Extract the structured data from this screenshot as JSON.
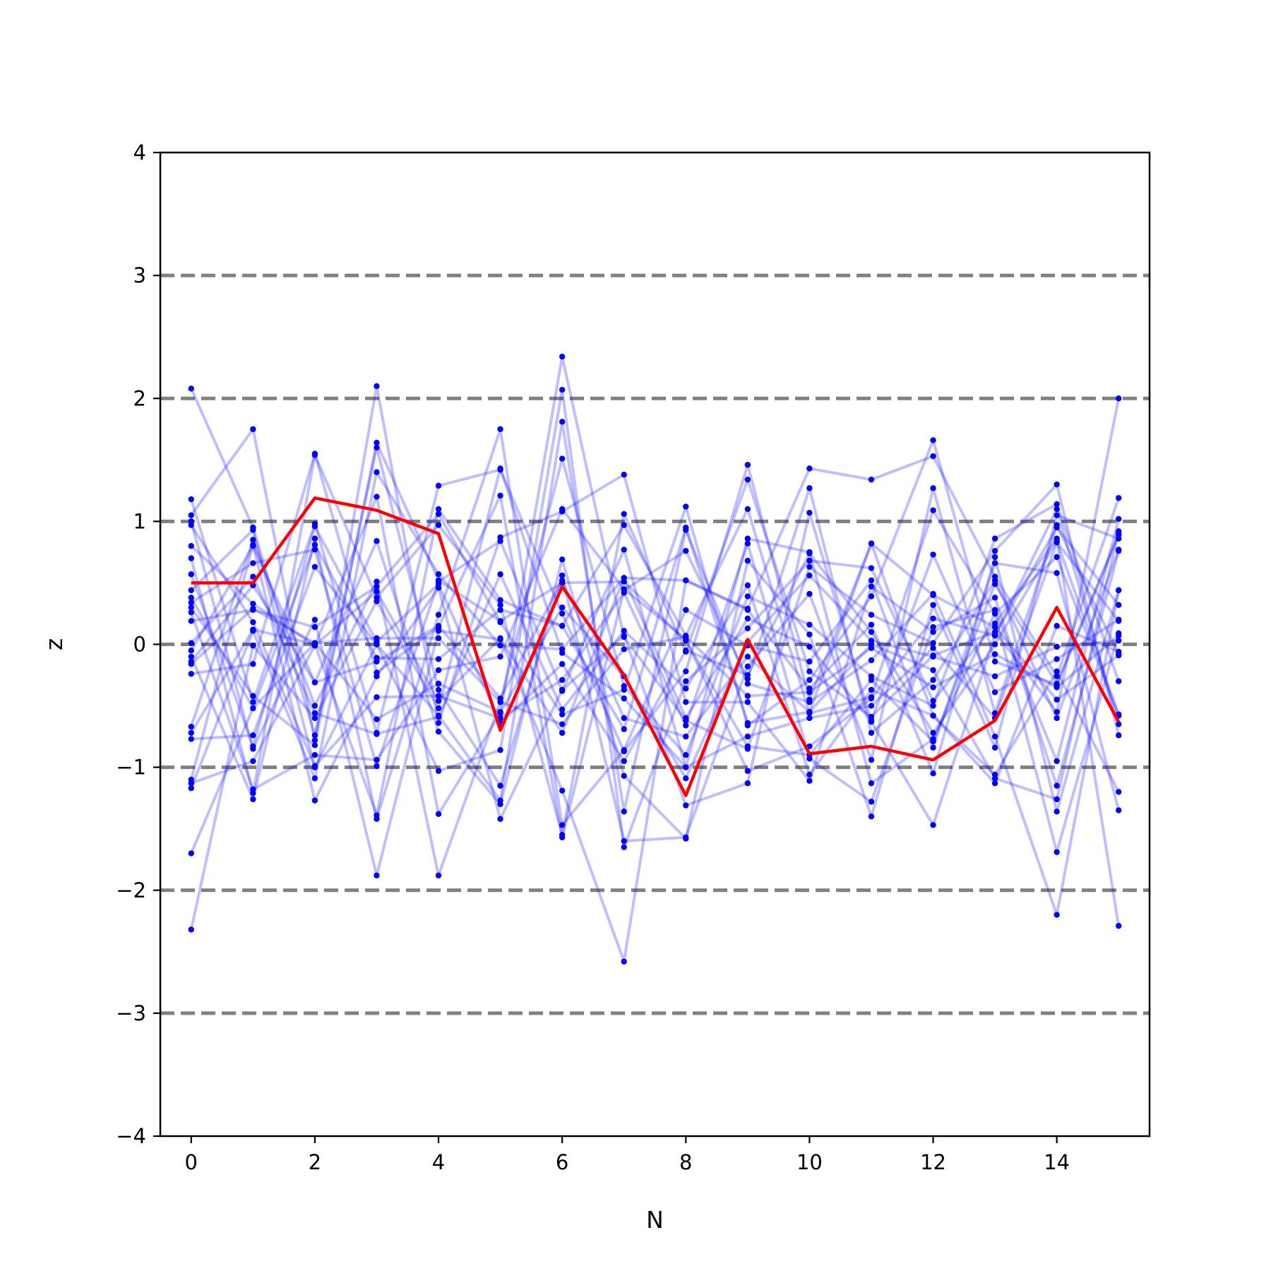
{
  "chart_data": {
    "type": "line",
    "title": "",
    "xlabel": "N",
    "ylabel": "z",
    "xlim": [
      -0.5,
      15.5
    ],
    "ylim": [
      -4,
      4
    ],
    "x_ticks": [
      0,
      2,
      4,
      6,
      8,
      10,
      12,
      14
    ],
    "x_tick_labels": [
      "0",
      "2",
      "4",
      "6",
      "8",
      "10",
      "12",
      "14"
    ],
    "y_ticks": [
      -4,
      -3,
      -2,
      -1,
      0,
      1,
      2,
      3,
      4
    ],
    "y_tick_labels": [
      "−4",
      "−3",
      "−2",
      "−1",
      "0",
      "1",
      "2",
      "3",
      "4"
    ],
    "reference_lines": [
      -3,
      -2,
      -1,
      0,
      1,
      2,
      3
    ],
    "reference_line_color": "#808080",
    "background_series_color": "#0000ff",
    "highlight_color": "#ff0000",
    "grid": false,
    "legend": "none",
    "x": [
      0,
      1,
      2,
      3,
      4,
      5,
      6,
      7,
      8,
      9,
      10,
      11,
      12,
      13,
      14,
      15
    ],
    "highlight_series": {
      "values": [
        0.5,
        0.5,
        1.19,
        1.09,
        0.9,
        -0.7,
        0.47,
        -0.25,
        -1.23,
        0.04,
        -0.89,
        -0.83,
        -0.94,
        -0.62,
        0.3,
        -0.63
      ]
    },
    "background_series": [
      [
        2.08,
        0.95,
        -0.74,
        1.6,
        -0.37,
        -1.15,
        0.56,
        -1.6,
        -1.57,
        -0.18,
        0.41,
        -0.94,
        1.27,
        -0.56,
        0.97,
        -0.08
      ],
      [
        1.18,
        -0.47,
        0.98,
        -0.72,
        1.29,
        1.42,
        0.25,
        -0.87,
        -0.22,
        1.46,
        -0.45,
        0.82,
        -0.58,
        -1.06,
        -0.22,
        -1.2
      ],
      [
        1.05,
        1.75,
        -0.78,
        2.1,
        -0.64,
        0.87,
        1.08,
        1.38,
        -0.47,
        -0.47,
        -1.11,
        0.47,
        0.1,
        0.38,
        -1.15,
        0.76
      ],
      [
        1.0,
        -0.85,
        0.2,
        -1.88,
        0.11,
        0.04,
        -0.72,
        0.54,
        0.52,
        0.29,
        1.43,
        1.34,
        1.53,
        0.55,
        -0.26,
        1.19
      ],
      [
        0.8,
        0.33,
        -0.01,
        1.2,
        -1.38,
        -0.56,
        2.34,
        0.06,
        -0.62,
        -0.85,
        0.63,
        0.24,
        0.01,
        0.76,
        1.3,
        -0.74
      ],
      [
        0.7,
        -1.21,
        1.54,
        0.38,
        0.97,
        0.32,
        -1.55,
        1.06,
        -0.06,
        1.34,
        -0.22,
        -0.59,
        -0.09,
        0.1,
        -0.55,
        2.0
      ],
      [
        0.44,
        0.93,
        -1.0,
        0.0,
        -0.58,
        -1.27,
        1.81,
        -1.36,
        0.93,
        -0.32,
        -0.47,
        -0.13,
        0.41,
        -0.75,
        -2.2,
        0.44
      ],
      [
        0.34,
        0.66,
        0.77,
        -0.99,
        0.51,
        0.84,
        -0.38,
        0.77,
        -1.0,
        0.86,
        0.75,
        -1.13,
        -0.77,
        0.25,
        0.71,
        -0.58
      ],
      [
        0.26,
        -1.18,
        -0.9,
        -0.94,
        -0.21,
        -0.1,
        1.1,
        0.45,
        0.04,
        -1.03,
        -0.83,
        -0.44,
        0.21,
        0.07,
        1.1,
        -0.65
      ],
      [
        0.19,
        0.28,
        0.14,
        0.47,
        1.06,
        0.18,
        -0.57,
        -0.37,
        1.12,
        -0.66,
        -0.29,
        0.39,
        1.66,
        -0.14,
        -0.33,
        0.89
      ],
      [
        -0.1,
        -1.26,
        0.86,
        -1.42,
        0.24,
        1.75,
        -1.47,
        -0.86,
        0.28,
        -0.01,
        -0.14,
        0.52,
        -0.84,
        0.66,
        0.58,
        -1.35
      ],
      [
        -0.14,
        0.48,
        -0.31,
        0.84,
        -0.71,
        -1.3,
        0.69,
        -1.07,
        -1.58,
        0.68,
        0.08,
        -1.4,
        0.32,
        -0.84,
        1.05,
        0.86
      ],
      [
        -0.24,
        -0.16,
        1.55,
        -0.23,
        0.14,
        1.21,
        -1.57,
        0.44,
        0.76,
        -0.28,
        1.27,
        -0.72,
        -0.29,
        0.52,
        -0.6,
        0.77
      ],
      [
        -0.67,
        0.85,
        -0.5,
        0.51,
        -1.88,
        -0.47,
        1.51,
        -0.34,
        -0.9,
        0.39,
        0.16,
        -0.26,
        -0.5,
        0.86,
        1.14,
        -0.3
      ],
      [
        -0.72,
        0.12,
        0.0,
        -1.39,
        1.1,
        0.36,
        0.15,
        0.97,
        0.07,
        1.1,
        -0.56,
        -0.43,
        1.09,
        0.25,
        -1.69,
        0.09
      ],
      [
        -0.77,
        -0.74,
        0.63,
        0.0,
        -1.03,
        -0.86,
        2.07,
        -1.65,
        -0.3,
        0.13,
        0.68,
        0.62,
        -0.46,
        0.17,
        0.86,
        -2.29
      ],
      [
        -1.1,
        0.81,
        -1.27,
        -0.26,
        0.46,
        -1.42,
        -0.37,
        0.07,
        -1.31,
        -1.13,
        1.07,
        -0.63,
        -1.47,
        0.08,
        0.95,
        0.32
      ],
      [
        -1.13,
        -0.95,
        -0.01,
        0.43,
        -0.46,
        0.05,
        -1.19,
        -2.58,
        0.52,
        0.28,
        -0.36,
        0.16,
        -1.05,
        0.71,
        -1.36,
        0.44
      ],
      [
        -1.17,
        0.11,
        -1.09,
        1.4,
        0.57,
        -0.01,
        -0.04,
        0.54,
        -0.6,
        0.21,
        -0.02,
        -0.62,
        0.73,
        -0.39,
        -0.12,
        0.2
      ],
      [
        -1.7,
        -0.52,
        0.81,
        -0.11,
        -0.12,
        0.28,
        0.15,
        -0.69,
        0.95,
        -0.64,
        -0.55,
        0.82,
        0.4,
        0.14,
        -0.45,
        -0.09
      ],
      [
        -2.32,
        -0.01,
        -0.6,
        0.35,
        -0.52,
        1.43,
        -0.07,
        -0.44,
        -1.0,
        -0.75,
        -0.6,
        -0.5,
        -0.03,
        -0.6,
        0.83,
        0.19
      ],
      [
        0.97,
        0.18,
        -0.99,
        -0.43,
        -0.42,
        -0.6,
        -0.29,
        0.42,
        -0.66,
        0.82,
        -0.93,
        -1.28,
        0.14,
        0.28,
        -0.95,
        1.02
      ],
      [
        0.57,
        -0.83,
        0.96,
        0.02,
        0.49,
        -0.64,
        -0.16,
        -0.95,
        -0.05,
        -0.25,
        0.74,
        0.1,
        -0.72,
        0.0,
        0.84,
        -0.57
      ],
      [
        0.3,
        -0.42,
        -0.82,
        1.64,
        0.52,
        0.19,
        0.5,
        0.51,
        0.03,
        -0.83,
        -0.9,
        -0.29,
        -0.79,
        0.49,
        -0.32,
        0.9
      ],
      [
        0.01,
        0.55,
        -0.56,
        -0.73,
        -0.59,
        0.57,
        -0.53,
        0.11,
        -0.36,
        0.48,
        -1.06,
        -0.37,
        -0.58,
        -1.13,
        0.15,
        -0.06
      ],
      [
        -0.16,
        0.29,
        0.01,
        -0.61,
        -0.32,
        -0.55,
        0.3,
        -0.26,
        -1.09,
        0.02,
        0.56,
        0.03,
        -0.1,
        -0.26,
        -0.02,
        0.03
      ],
      [
        0.38,
        -0.52,
        0.01,
        0.05,
        0.05,
        -0.47,
        -0.65,
        -0.04,
        0.06,
        -0.42,
        -0.39,
        -0.03,
        -0.35,
        -0.08,
        -0.35,
        0.07
      ],
      [
        -0.05,
        0.8,
        -0.31,
        -0.14,
        0.15,
        -0.44,
        0.52,
        -0.6,
        -0.75,
        -0.1,
        -0.55,
        0.0,
        -0.21,
        -1.09,
        -1.26,
        0.92
      ]
    ]
  }
}
